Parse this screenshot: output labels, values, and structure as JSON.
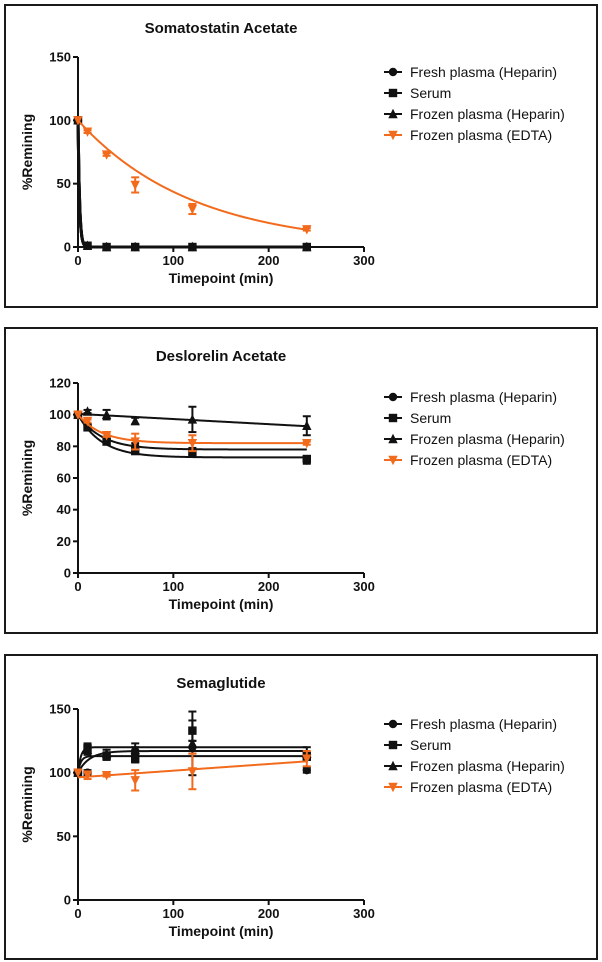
{
  "colors": {
    "black": "#111111",
    "orange": "#f26b1d"
  },
  "legend": [
    {
      "name": "Fresh plasma (Heparin)",
      "marker": "circle",
      "color": "#111111"
    },
    {
      "name": "Serum",
      "marker": "square",
      "color": "#111111"
    },
    {
      "name": "Frozen plasma (Heparin)",
      "marker": "triangle-up",
      "color": "#111111"
    },
    {
      "name": "Frozen plasma (EDTA)",
      "marker": "triangle-down",
      "color": "#f26b1d"
    }
  ],
  "chart_data": [
    {
      "type": "scatter",
      "title": "Somatostatin Acetate",
      "xlabel": "Timepoint (min)",
      "ylabel": "%Remining",
      "xlim": [
        0,
        300
      ],
      "ylim": [
        0,
        150
      ],
      "xticks": [
        0,
        100,
        200,
        300
      ],
      "yticks": [
        0,
        50,
        100,
        150
      ],
      "x": [
        0,
        10,
        30,
        60,
        120,
        240
      ],
      "legend_position": "right",
      "series": [
        {
          "name": "Fresh plasma (Heparin)",
          "values": [
            100,
            1,
            0,
            0,
            0,
            0
          ],
          "errors": [
            0,
            0,
            0,
            0,
            0,
            0
          ],
          "fit": "decay-fast"
        },
        {
          "name": "Serum",
          "values": [
            100,
            1,
            0,
            0,
            0,
            0
          ],
          "errors": [
            0,
            0,
            0,
            0,
            0,
            0
          ],
          "fit": "decay-fast"
        },
        {
          "name": "Frozen plasma (Heparin)",
          "values": [
            100,
            1,
            0,
            0,
            0,
            0
          ],
          "errors": [
            0,
            0,
            0,
            0,
            0,
            0
          ],
          "fit": "decay-fast"
        },
        {
          "name": "Frozen plasma (EDTA)",
          "values": [
            100,
            91,
            73,
            49,
            30,
            14
          ],
          "errors": [
            0,
            1,
            1,
            6,
            4,
            1
          ],
          "fit": "decay"
        }
      ]
    },
    {
      "type": "scatter",
      "title": "Deslorelin Acetate",
      "xlabel": "Timepoint (min)",
      "ylabel": "%Remining",
      "xlim": [
        0,
        300
      ],
      "ylim": [
        0,
        120
      ],
      "xticks": [
        0,
        100,
        200,
        300
      ],
      "yticks": [
        0,
        20,
        40,
        60,
        80,
        100,
        120
      ],
      "x": [
        0,
        10,
        30,
        60,
        120,
        240
      ],
      "legend_position": "right",
      "series": [
        {
          "name": "Fresh plasma (Heparin)",
          "values": [
            100,
            93,
            85,
            80,
            77,
            71
          ],
          "errors": [
            0,
            1,
            1,
            2,
            2,
            2
          ],
          "fit": "decay",
          "plateau": 78
        },
        {
          "name": "Serum",
          "values": [
            100,
            92,
            83,
            77,
            76,
            72
          ],
          "errors": [
            0,
            1,
            1,
            1,
            2,
            1
          ],
          "fit": "decay",
          "plateau": 73
        },
        {
          "name": "Frozen plasma (Heparin)",
          "values": [
            100,
            102,
            100,
            96,
            97,
            93
          ],
          "errors": [
            0,
            1,
            3,
            2,
            8,
            6
          ],
          "fit": "linear"
        },
        {
          "name": "Frozen plasma (EDTA)",
          "values": [
            100,
            96,
            87,
            83,
            82,
            82
          ],
          "errors": [
            0,
            1,
            1,
            5,
            5,
            1
          ],
          "fit": "decay",
          "plateau": 82
        }
      ]
    },
    {
      "type": "scatter",
      "title": "Semaglutide",
      "xlabel": "Timepoint (min)",
      "ylabel": "%Remining",
      "xlim": [
        0,
        300
      ],
      "ylim": [
        0,
        150
      ],
      "xticks": [
        0,
        100,
        200,
        300
      ],
      "yticks": [
        0,
        50,
        100,
        150
      ],
      "x": [
        0,
        10,
        30,
        60,
        120,
        240
      ],
      "legend_position": "right",
      "series": [
        {
          "name": "Fresh plasma (Heparin)",
          "values": [
            100,
            100,
            113,
            117,
            120,
            102
          ],
          "errors": [
            0,
            2,
            2,
            3,
            5,
            2
          ],
          "fit": "rise",
          "plateau": 117
        },
        {
          "name": "Serum",
          "values": [
            100,
            119,
            113,
            111,
            133,
            113
          ],
          "errors": [
            0,
            4,
            3,
            3,
            8,
            3
          ],
          "fit": "rise-fast",
          "plateau": 113
        },
        {
          "name": "Frozen plasma (Heparin)",
          "values": [
            100,
            118,
            115,
            118,
            123,
            115
          ],
          "errors": [
            0,
            4,
            3,
            5,
            25,
            5
          ],
          "fit": "rise-fast",
          "plateau": 120
        },
        {
          "name": "Frozen plasma (EDTA)",
          "values": [
            100,
            98,
            98,
            94,
            101,
            111
          ],
          "errors": [
            0,
            3,
            1,
            8,
            14,
            6
          ],
          "fit": "linear"
        }
      ]
    }
  ]
}
